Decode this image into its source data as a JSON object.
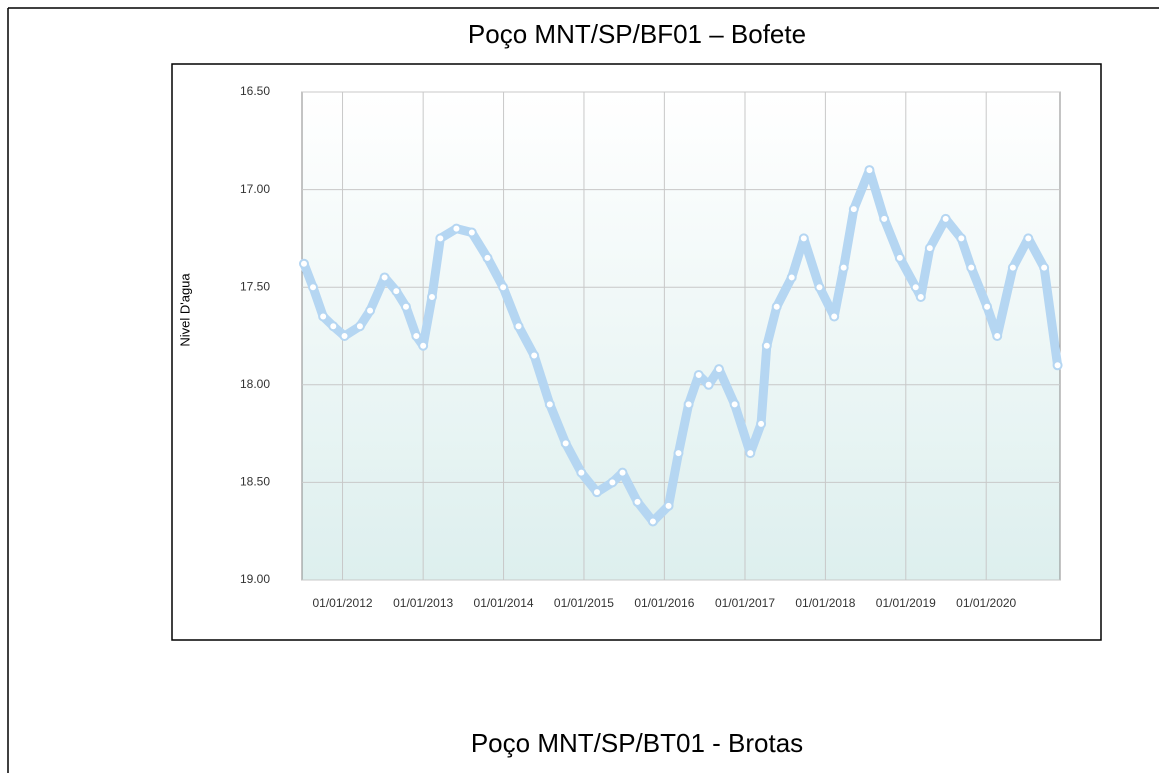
{
  "chart_data": {
    "type": "line",
    "title": "Poço MNT/SP/BF01 – Bofete",
    "ylabel": "Nivel D'agua",
    "color": "#b5d6f2",
    "y_inverted": true,
    "grid": true,
    "xlim": [
      "2011-07-01",
      "2020-12-01"
    ],
    "xticks": [
      {
        "value": "2012-01-01",
        "label": "01/01/2012"
      },
      {
        "value": "2013-01-01",
        "label": "01/01/2013"
      },
      {
        "value": "2014-01-01",
        "label": "01/01/2014"
      },
      {
        "value": "2015-01-01",
        "label": "01/01/2015"
      },
      {
        "value": "2016-01-01",
        "label": "01/01/2016"
      },
      {
        "value": "2017-01-01",
        "label": "01/01/2017"
      },
      {
        "value": "2018-01-01",
        "label": "01/01/2018"
      },
      {
        "value": "2019-01-01",
        "label": "01/01/2019"
      },
      {
        "value": "2020-01-01",
        "label": "01/01/2020"
      }
    ],
    "ylim": [
      16.5,
      19
    ],
    "yticks": [
      {
        "value": 16.5,
        "label": "16.50"
      },
      {
        "value": 17,
        "label": "17.00"
      },
      {
        "value": 17.5,
        "label": "17.50"
      },
      {
        "value": 18,
        "label": "18.00"
      },
      {
        "value": 18.5,
        "label": "18.50"
      },
      {
        "value": 19,
        "label": "19.00"
      }
    ],
    "x": [
      "2011-07-10",
      "2011-08-20",
      "2011-10-05",
      "2011-11-20",
      "2012-01-10",
      "2012-03-20",
      "2012-05-05",
      "2012-07-10",
      "2012-09-01",
      "2012-10-15",
      "2012-12-01",
      "2013-01-01",
      "2013-02-10",
      "2013-03-20",
      "2013-06-01",
      "2013-08-10",
      "2013-10-20",
      "2013-12-30",
      "2014-03-10",
      "2014-05-20",
      "2014-07-30",
      "2014-10-10",
      "2014-12-20",
      "2015-03-01",
      "2015-05-10",
      "2015-06-25",
      "2015-09-01",
      "2015-11-10",
      "2016-01-20",
      "2016-03-05",
      "2016-04-20",
      "2016-06-05",
      "2016-07-20",
      "2016-09-05",
      "2016-11-15",
      "2017-01-25",
      "2017-03-15",
      "2017-04-10",
      "2017-05-25",
      "2017-08-01",
      "2017-09-25",
      "2017-12-05",
      "2018-02-10",
      "2018-03-25",
      "2018-05-10",
      "2018-07-20",
      "2018-09-25",
      "2018-12-05",
      "2019-02-15",
      "2019-03-10",
      "2019-04-20",
      "2019-07-01",
      "2019-09-10",
      "2019-10-25",
      "2020-01-05",
      "2020-02-20",
      "2020-05-01",
      "2020-07-10",
      "2020-09-20",
      "2020-11-20"
    ],
    "values": [
      17.38,
      17.5,
      17.65,
      17.7,
      17.75,
      17.7,
      17.62,
      17.45,
      17.52,
      17.6,
      17.75,
      17.8,
      17.55,
      17.25,
      17.2,
      17.22,
      17.35,
      17.5,
      17.7,
      17.85,
      18.1,
      18.3,
      18.45,
      18.55,
      18.5,
      18.45,
      18.6,
      18.7,
      18.62,
      18.35,
      18.1,
      17.95,
      18.0,
      17.92,
      18.1,
      18.35,
      18.2,
      17.8,
      17.6,
      17.45,
      17.25,
      17.5,
      17.65,
      17.4,
      17.1,
      16.9,
      17.15,
      17.35,
      17.5,
      17.55,
      17.3,
      17.15,
      17.25,
      17.4,
      17.6,
      17.75,
      17.4,
      17.25,
      17.4,
      17.9
    ]
  },
  "next_chart": {
    "title": "Poço MNT/SP/BT01 - Brotas"
  }
}
